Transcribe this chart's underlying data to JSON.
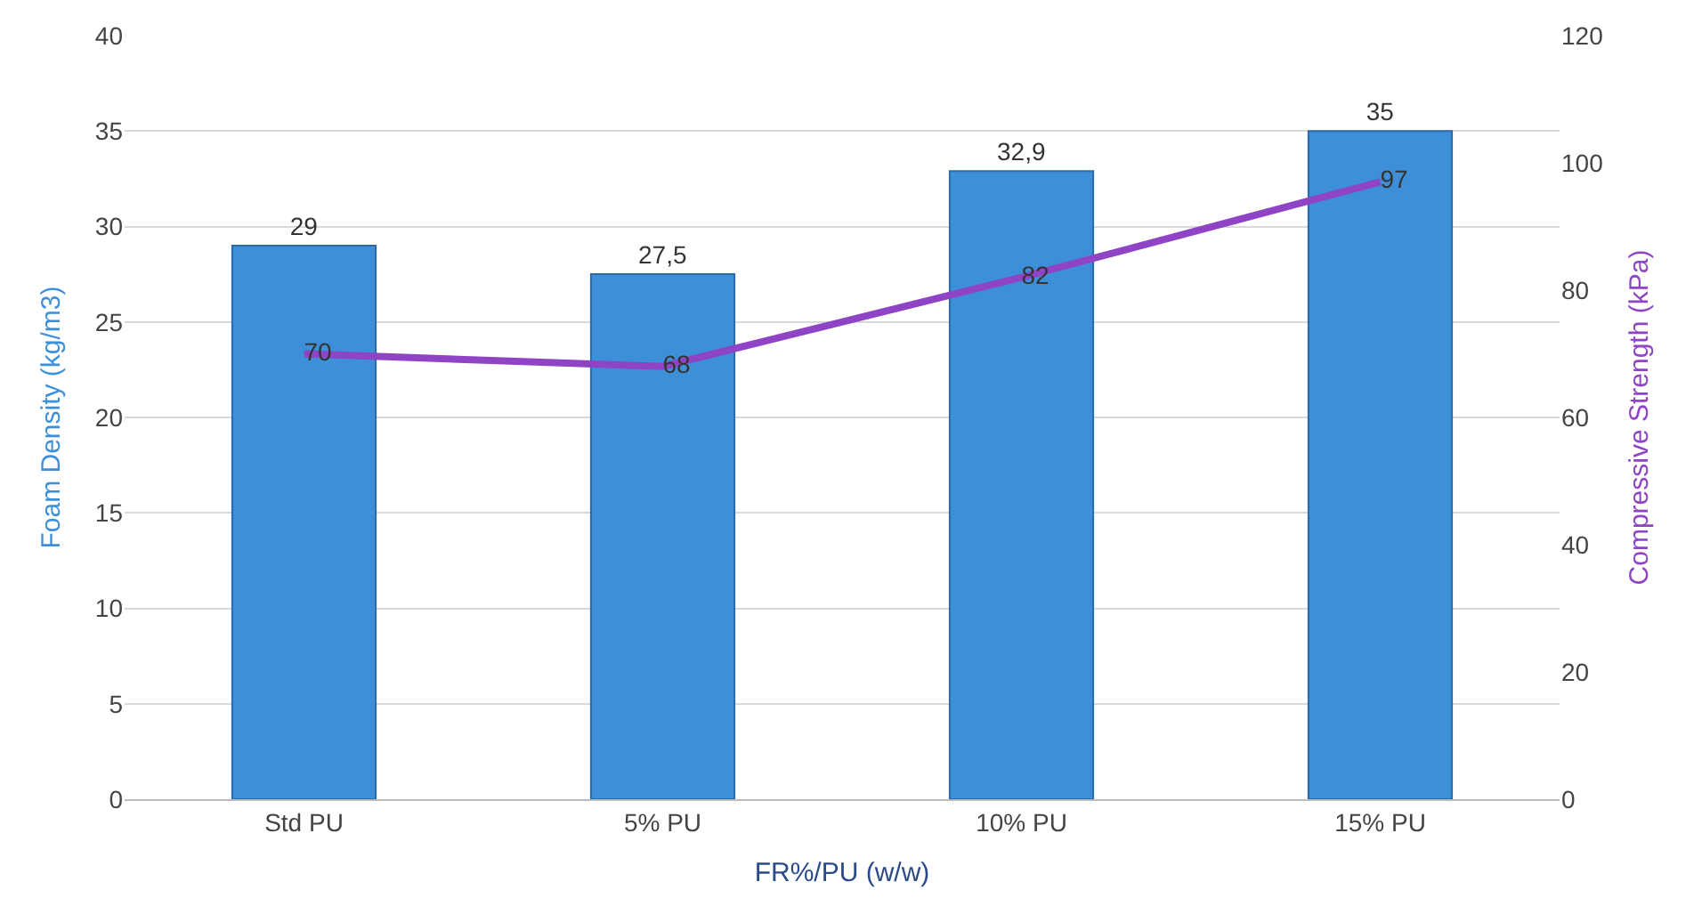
{
  "chart_data": {
    "type": "bar",
    "xlabel": "FR%/PU (w/w)",
    "ylabel": "Foam Density (kg/m3)",
    "y2label": "Compressive Strength (kPa)",
    "categories": [
      "Std PU",
      "5% PU",
      "10% PU",
      "15% PU"
    ],
    "series": [
      {
        "color": "#3d8fd8",
        "values": [
          29,
          27.5,
          32.9,
          35
        ],
        "value_labels": [
          "29",
          "27,5",
          "32,9",
          "35"
        ]
      },
      {
        "type": "line",
        "axis": "y2",
        "color": "#8e44c4",
        "values": [
          70,
          68,
          82,
          97
        ],
        "value_labels": [
          "70",
          "68",
          "82",
          "97"
        ]
      }
    ],
    "ylim": [
      0,
      40
    ],
    "yticks": [
      0,
      5,
      10,
      15,
      20,
      25,
      30,
      35,
      40
    ],
    "y2lim": [
      0,
      120
    ],
    "y2ticks": [
      0,
      20,
      40,
      60,
      80,
      100,
      120
    ],
    "grid": "y",
    "marker": "none",
    "line_style": "solid"
  }
}
